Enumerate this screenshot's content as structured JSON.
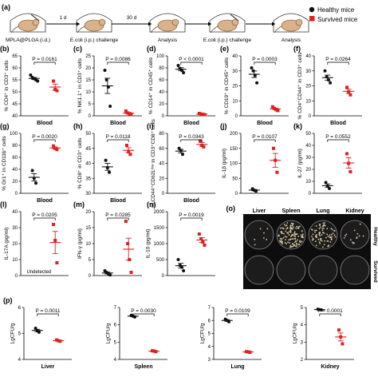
{
  "colors": {
    "healthy": "#111111",
    "survived": "#e02020",
    "plate_bg": "#0d0d0d"
  },
  "schematic": {
    "panel": "(a)",
    "steps": [
      {
        "label": "MPLA@PLGA (i.d.)",
        "arrow": "1 d"
      },
      {
        "label": "E.coli (i.p.) challenge",
        "arrow": "30 d"
      },
      {
        "label": "Analysis",
        "arrow": ""
      },
      {
        "label": "E.coli (i.p.) challenge",
        "arrow": ""
      },
      {
        "label": "Analysis",
        "arrow": ""
      }
    ],
    "icon": "mouse-icon"
  },
  "legend": {
    "healthy": "Healthy mice",
    "survived": "Survived mice"
  },
  "chart_data": [
    {
      "panel": "(b)",
      "type": "scatter",
      "ylabel": "% CD4⁺ in CD3⁺ cells",
      "xlabel": "Blood",
      "ylim": [
        40,
        65
      ],
      "ticks": [
        40,
        45,
        50,
        55,
        60,
        65
      ],
      "p": "P = 0.0161",
      "series": [
        {
          "name": "Healthy mice",
          "values": [
            57,
            56,
            55.5,
            55,
            54.5
          ]
        },
        {
          "name": "Survived mice",
          "values": [
            54.5,
            51,
            50.5
          ]
        }
      ]
    },
    {
      "panel": "(c)",
      "type": "scatter",
      "ylabel": "% NK1.1⁺ in CD3⁺ cells",
      "xlabel": "Blood",
      "ylim": [
        0,
        25
      ],
      "ticks": [
        0,
        5,
        10,
        15,
        20,
        25
      ],
      "p": "P = 0.0086",
      "series": [
        {
          "name": "Healthy mice",
          "values": [
            19,
            15,
            12,
            4
          ]
        },
        {
          "name": "Survived mice",
          "values": [
            2,
            1.2,
            0.8,
            0.5
          ]
        }
      ]
    },
    {
      "panel": "(d)",
      "type": "scatter",
      "ylabel": "% CD14⁺ in CD45⁺ cells",
      "xlabel": "Blood",
      "ylim": [
        0,
        100
      ],
      "ticks": [
        0,
        20,
        40,
        60,
        80,
        100
      ],
      "p": "P < 0.0001",
      "series": [
        {
          "name": "Healthy mice",
          "values": [
            84,
            79,
            76,
            72
          ]
        },
        {
          "name": "Survived mice",
          "values": [
            4,
            3,
            2.5,
            2
          ]
        }
      ]
    },
    {
      "panel": "(e)",
      "type": "scatter",
      "ylabel": "% CD19⁺ in CD45⁺ cells",
      "xlabel": "Blood",
      "ylim": [
        0,
        40
      ],
      "ticks": [
        0,
        10,
        20,
        30,
        40
      ],
      "p": "P = 0.0003",
      "series": [
        {
          "name": "Healthy mice",
          "values": [
            32,
            30,
            27,
            22
          ]
        },
        {
          "name": "Survived mice",
          "values": [
            6,
            5,
            4,
            3.5
          ]
        }
      ]
    },
    {
      "panel": "(f)",
      "type": "scatter",
      "ylabel": "% CD4⁺CD44⁺ in CD3⁺ cells",
      "xlabel": "Blood",
      "ylim": [
        0,
        40
      ],
      "ticks": [
        0,
        10,
        20,
        30,
        40
      ],
      "p": "P = 0.0264",
      "series": [
        {
          "name": "Healthy mice",
          "values": [
            30,
            26,
            24,
            22
          ]
        },
        {
          "name": "Survived mice",
          "values": [
            19,
            16,
            14
          ]
        }
      ]
    },
    {
      "panel": "(g)",
      "type": "scatter",
      "ylabel": "% Gr1⁺ in CD11b⁺ cells",
      "xlabel": "Blood",
      "ylim": [
        0,
        100
      ],
      "ticks": [
        0,
        20,
        40,
        60,
        80,
        100
      ],
      "p": "P = 0.0020",
      "series": [
        {
          "name": "Healthy mice",
          "values": [
            38,
            25,
            17
          ]
        },
        {
          "name": "Survived mice",
          "values": [
            79,
            75,
            73
          ]
        }
      ]
    },
    {
      "panel": "(h)",
      "type": "scatter",
      "ylabel": "% CD8⁺ in CD3⁺ cells",
      "xlabel": "Blood",
      "ylim": [
        30,
        50
      ],
      "ticks": [
        30,
        35,
        40,
        45,
        50
      ],
      "p": "P = 0.0118",
      "series": [
        {
          "name": "Healthy mice",
          "values": [
            41,
            38.5,
            37
          ]
        },
        {
          "name": "Survived mice",
          "values": [
            46,
            44,
            43
          ]
        }
      ]
    },
    {
      "panel": "(i)",
      "type": "scatter",
      "ylabel": "% CD44⁺CD62Lˡᵒʷ in CD3⁺CD8⁺ cells",
      "xlabel": "Blood",
      "ylim": [
        0,
        80
      ],
      "ticks": [
        0,
        20,
        40,
        60,
        80
      ],
      "p": "P = 0.0343",
      "series": [
        {
          "name": "Healthy mice",
          "values": [
            60,
            57,
            52
          ]
        },
        {
          "name": "Survived mice",
          "values": [
            70,
            64,
            62
          ]
        }
      ]
    },
    {
      "panel": "(j)",
      "type": "scatter",
      "ylabel": "IL-1β (pg/ml)",
      "xlabel": "",
      "ylim": [
        0,
        200
      ],
      "ticks": [
        0,
        50,
        100,
        150,
        200
      ],
      "p": "P = 0.0107",
      "series": [
        {
          "name": "Healthy mice",
          "values": [
            15,
            10,
            7
          ]
        },
        {
          "name": "Survived mice",
          "values": [
            150,
            110,
            70
          ]
        }
      ]
    },
    {
      "panel": "(k)",
      "type": "scatter",
      "ylabel": "IL-27 (pg/ml)",
      "xlabel": "",
      "ylim": [
        0,
        50
      ],
      "ticks": [
        0,
        10,
        20,
        30,
        40,
        50
      ],
      "p": "P = 0.0552",
      "series": [
        {
          "name": "Healthy mice",
          "values": [
            9,
            6,
            4
          ]
        },
        {
          "name": "Survived mice",
          "values": [
            33,
            25,
            18
          ]
        }
      ]
    },
    {
      "panel": "(l)",
      "type": "scatter",
      "ylabel": "IL-17A (pg/ml)",
      "xlabel": "",
      "ylim": [
        0,
        40
      ],
      "ticks": [
        0,
        10,
        20,
        30,
        40
      ],
      "p": "P = 0.0205",
      "note": "Undetected",
      "series": [
        {
          "name": "Healthy mice",
          "values": []
        },
        {
          "name": "Survived mice",
          "values": [
            32,
            22,
            8
          ]
        }
      ]
    },
    {
      "panel": "(m)",
      "type": "scatter",
      "ylabel": "IFN-γ (pg/ml)",
      "xlabel": "",
      "ylim": [
        0,
        20
      ],
      "ticks": [
        0,
        5,
        10,
        15,
        20
      ],
      "p": "P = 0.0285",
      "series": [
        {
          "name": "Healthy mice",
          "values": [
            1.5,
            1,
            0.5,
            0.2
          ]
        },
        {
          "name": "Survived mice",
          "values": [
            17,
            10,
            5,
            1
          ]
        }
      ]
    },
    {
      "panel": "(n)",
      "type": "scatter",
      "ylabel": "IL-10 (pg/ml)",
      "xlabel": "",
      "ylim": [
        0,
        2000
      ],
      "ticks": [
        0,
        500,
        1000,
        1500,
        2000
      ],
      "p": "P = 0.0019",
      "series": [
        {
          "name": "Healthy mice",
          "values": [
            500,
            320,
            260,
            150
          ]
        },
        {
          "name": "Survived mice",
          "values": [
            1300,
            1150,
            1050,
            950
          ]
        }
      ]
    },
    {
      "panel": "(p)",
      "type": "scatter",
      "ylabel": "LgCFU/g",
      "xlabel": "Liver",
      "ylim": [
        4,
        6
      ],
      "ticks": [
        4,
        5,
        6
      ],
      "p": "P = 0.0011",
      "series": [
        {
          "name": "Healthy mice",
          "values": [
            5.2,
            5.1,
            5.05
          ]
        },
        {
          "name": "Survived mice",
          "values": [
            4.75,
            4.72,
            4.7
          ]
        }
      ]
    },
    {
      "panel": "",
      "type": "scatter",
      "ylabel": "LgCFU/g",
      "xlabel": "Spleen",
      "ylim": [
        4,
        7
      ],
      "ticks": [
        4,
        5,
        6,
        7
      ],
      "p": "P = 0.0030",
      "series": [
        {
          "name": "Healthy mice",
          "values": [
            6.55,
            6.5,
            6.45
          ]
        },
        {
          "name": "Survived mice",
          "values": [
            4.5,
            4.48,
            4.45
          ]
        }
      ]
    },
    {
      "panel": "",
      "type": "scatter",
      "ylabel": "LgCFU/g",
      "xlabel": "Lung",
      "ylim": [
        3,
        7
      ],
      "ticks": [
        3,
        4,
        5,
        6,
        7
      ],
      "p": "P = 0.0109",
      "series": [
        {
          "name": "Healthy mice",
          "values": [
            6.1,
            6.0,
            5.9
          ]
        },
        {
          "name": "Survived mice",
          "values": [
            3.6,
            3.58,
            3.55
          ]
        }
      ]
    },
    {
      "panel": "",
      "type": "scatter",
      "ylabel": "LgCFU/g",
      "xlabel": "Kidney",
      "ylim": [
        2,
        5
      ],
      "ticks": [
        2,
        3,
        4,
        5
      ],
      "p": "P = 0.0001",
      "series": [
        {
          "name": "Healthy mice",
          "values": [
            4.9,
            4.88,
            4.86
          ]
        },
        {
          "name": "Survived mice",
          "values": [
            3.7,
            3.3,
            2.9
          ]
        }
      ]
    }
  ],
  "plates": {
    "panel": "(o)",
    "columns": [
      "Liver",
      "Spleen",
      "Lung",
      "Kidney"
    ],
    "rows": [
      "Healthy",
      "Survived"
    ],
    "colony_density": [
      [
        0.05,
        0.9,
        0.55,
        0.1
      ],
      [
        0.0,
        0.0,
        0.0,
        0.0
      ]
    ]
  }
}
